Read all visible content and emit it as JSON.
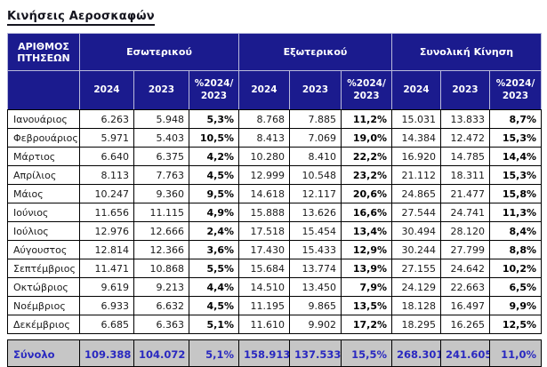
{
  "title": "Κινήσεις Αεροσκαφών",
  "colors": {
    "header_bg": "#1b1b8e",
    "header_text": "#ffffff",
    "header_grid": "#b9badb",
    "cell_border": "#000000",
    "total_bg": "#c6c6c6",
    "total_text": "#2a29c0"
  },
  "table": {
    "header": {
      "row_label": "ΑΡΙΘΜΟΣ\nΠΤΗΣΕΩΝ",
      "groups": [
        "Εσωτερικού",
        "Εξωτερικού",
        "Συνολική Κίνηση"
      ],
      "sub_headers": [
        "2024",
        "2023",
        "%2024/\n2023"
      ]
    },
    "rows": [
      {
        "label": "Ιανουάριος",
        "cells": [
          "6.263",
          "5.948",
          "5,3%",
          "8.768",
          "7.885",
          "11,2%",
          "15.031",
          "13.833",
          "8,7%"
        ]
      },
      {
        "label": "Φεβρουάριος",
        "cells": [
          "5.971",
          "5.403",
          "10,5%",
          "8.413",
          "7.069",
          "19,0%",
          "14.384",
          "12.472",
          "15,3%"
        ]
      },
      {
        "label": "Μάρτιος",
        "cells": [
          "6.640",
          "6.375",
          "4,2%",
          "10.280",
          "8.410",
          "22,2%",
          "16.920",
          "14.785",
          "14,4%"
        ]
      },
      {
        "label": "Απρίλιος",
        "cells": [
          "8.113",
          "7.763",
          "4,5%",
          "12.999",
          "10.548",
          "23,2%",
          "21.112",
          "18.311",
          "15,3%"
        ]
      },
      {
        "label": "Μάιος",
        "cells": [
          "10.247",
          "9.360",
          "9,5%",
          "14.618",
          "12.117",
          "20,6%",
          "24.865",
          "21.477",
          "15,8%"
        ]
      },
      {
        "label": "Ιούνιος",
        "cells": [
          "11.656",
          "11.115",
          "4,9%",
          "15.888",
          "13.626",
          "16,6%",
          "27.544",
          "24.741",
          "11,3%"
        ]
      },
      {
        "label": "Ιούλιος",
        "cells": [
          "12.976",
          "12.666",
          "2,4%",
          "17.518",
          "15.454",
          "13,4%",
          "30.494",
          "28.120",
          "8,4%"
        ]
      },
      {
        "label": "Αύγουστος",
        "cells": [
          "12.814",
          "12.366",
          "3,6%",
          "17.430",
          "15.433",
          "12,9%",
          "30.244",
          "27.799",
          "8,8%"
        ]
      },
      {
        "label": "Σεπτέμβριος",
        "cells": [
          "11.471",
          "10.868",
          "5,5%",
          "15.684",
          "13.774",
          "13,9%",
          "27.155",
          "24.642",
          "10,2%"
        ]
      },
      {
        "label": "Οκτώβριος",
        "cells": [
          "9.619",
          "9.213",
          "4,4%",
          "14.510",
          "13.450",
          "7,9%",
          "24.129",
          "22.663",
          "6,5%"
        ]
      },
      {
        "label": "Νοέμβριος",
        "cells": [
          "6.933",
          "6.632",
          "4,5%",
          "11.195",
          "9.865",
          "13,5%",
          "18.128",
          "16.497",
          "9,9%"
        ]
      },
      {
        "label": "Δεκέμβριος",
        "cells": [
          "6.685",
          "6.363",
          "5,1%",
          "11.610",
          "9.902",
          "17,2%",
          "18.295",
          "16.265",
          "12,5%"
        ]
      }
    ],
    "total_row": {
      "label": "Σύνολο",
      "cells": [
        "109.388",
        "104.072",
        "5,1%",
        "158.913",
        "137.533",
        "15,5%",
        "268.301",
        "241.605",
        "11,0%"
      ]
    }
  }
}
